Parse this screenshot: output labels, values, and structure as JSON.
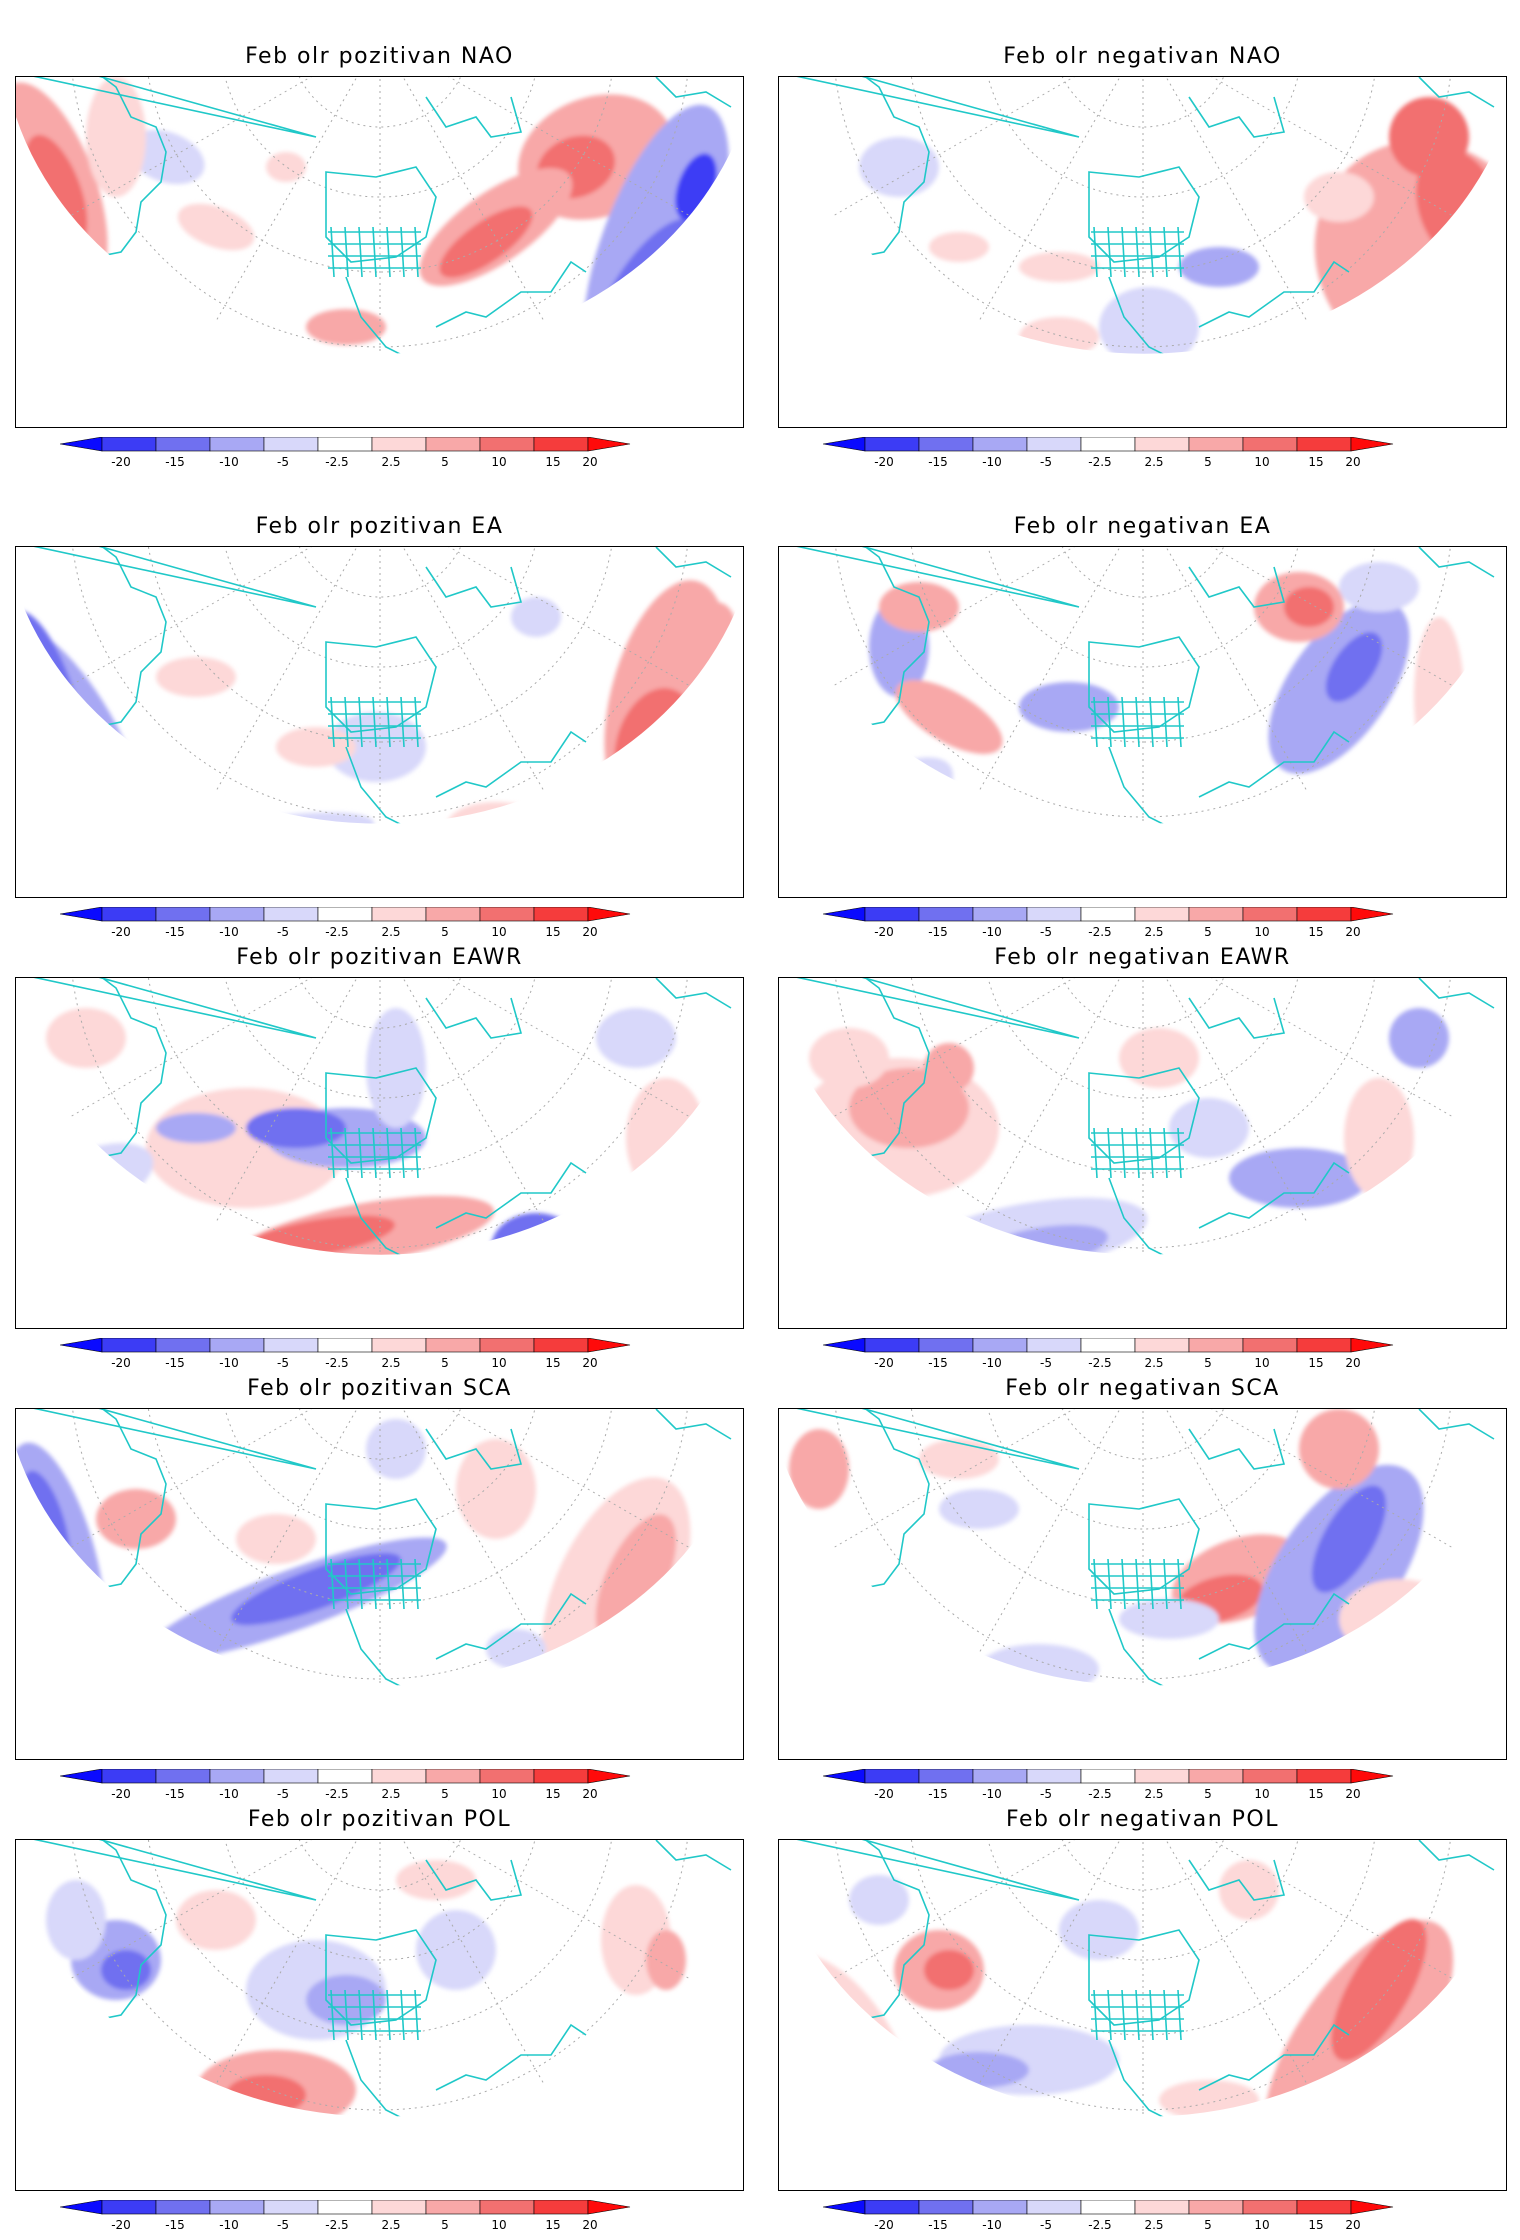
{
  "figure": {
    "panels": [
      {
        "title": "Feb olr pozitivan NAO",
        "pattern": "NAO",
        "phase": "pozitivan"
      },
      {
        "title": "Feb olr negativan NAO",
        "pattern": "NAO",
        "phase": "negativan"
      },
      {
        "title": "Feb olr pozitivan EA",
        "pattern": "EA",
        "phase": "pozitivan"
      },
      {
        "title": "Feb olr negativan EA",
        "pattern": "EA",
        "phase": "negativan"
      },
      {
        "title": "Feb olr pozitivan EAWR",
        "pattern": "EAWR",
        "phase": "pozitivan"
      },
      {
        "title": "Feb olr negativan EAWR",
        "pattern": "EAWR",
        "phase": "negativan"
      },
      {
        "title": "Feb olr pozitivan SCA",
        "pattern": "SCA",
        "phase": "pozitivan"
      },
      {
        "title": "Feb olr negativan SCA",
        "pattern": "SCA",
        "phase": "negativan"
      },
      {
        "title": "Feb olr pozitivan POL",
        "pattern": "POL",
        "phase": "pozitivan"
      },
      {
        "title": "Feb olr negativan POL",
        "pattern": "POL",
        "phase": "negativan"
      }
    ],
    "colorbar": {
      "tick_labels": [
        "-20",
        "-15",
        "-10",
        "-5",
        "-2.5",
        "2.5",
        "5",
        "10",
        "15",
        "20"
      ],
      "levels": [
        -20,
        -15,
        -10,
        -5,
        -2.5,
        2.5,
        5,
        10,
        15,
        20
      ],
      "colors": [
        "#0a0aff",
        "#3c3cf5",
        "#7070f0",
        "#a8a8f4",
        "#d8d8fa",
        "#ffffff",
        "#fdd8d8",
        "#f8a8a8",
        "#f27070",
        "#f53c3c",
        "#ff0a0a"
      ]
    },
    "map_style": {
      "coastline_color": "#20c8c8",
      "gridline_color": "#aaaaaa",
      "projection": "north polar stereographic (lower half)"
    }
  }
}
